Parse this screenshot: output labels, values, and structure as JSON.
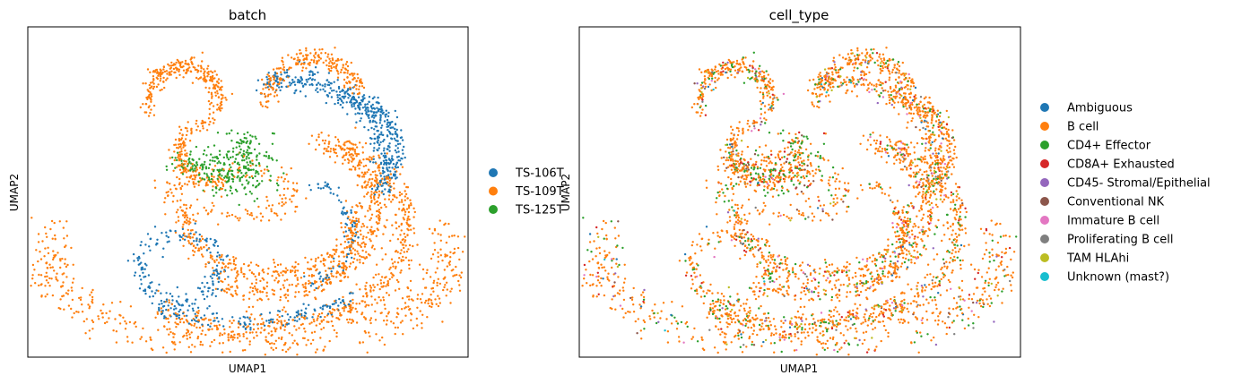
{
  "chart_data": [
    {
      "type": "scatter",
      "title": "batch",
      "xlabel": "UMAP1",
      "ylabel": "UMAP2",
      "grid": false,
      "legend_position": "right",
      "series": [
        {
          "name": "TS-106T",
          "color": "#1f77b4"
        },
        {
          "name": "TS-109T",
          "color": "#ff7f0e"
        },
        {
          "name": "TS-125T",
          "color": "#2ca02c"
        }
      ]
    },
    {
      "type": "scatter",
      "title": "cell_type",
      "xlabel": "UMAP1",
      "ylabel": "UMAP2",
      "grid": false,
      "legend_position": "right",
      "series": [
        {
          "name": "Ambiguous",
          "color": "#1f77b4"
        },
        {
          "name": "B cell",
          "color": "#ff7f0e"
        },
        {
          "name": "CD4+ Effector",
          "color": "#2ca02c"
        },
        {
          "name": "CD8A+ Exhausted",
          "color": "#d62728"
        },
        {
          "name": "CD45- Stromal/Epithelial",
          "color": "#9467bd"
        },
        {
          "name": "Conventional NK",
          "color": "#8c564b"
        },
        {
          "name": "Immature B cell",
          "color": "#e377c2"
        },
        {
          "name": "Proliferating B cell",
          "color": "#7f7f7f"
        },
        {
          "name": "TAM HLAhi",
          "color": "#bcbd22"
        },
        {
          "name": "Unknown (mast?)",
          "color": "#17becf"
        }
      ]
    }
  ]
}
